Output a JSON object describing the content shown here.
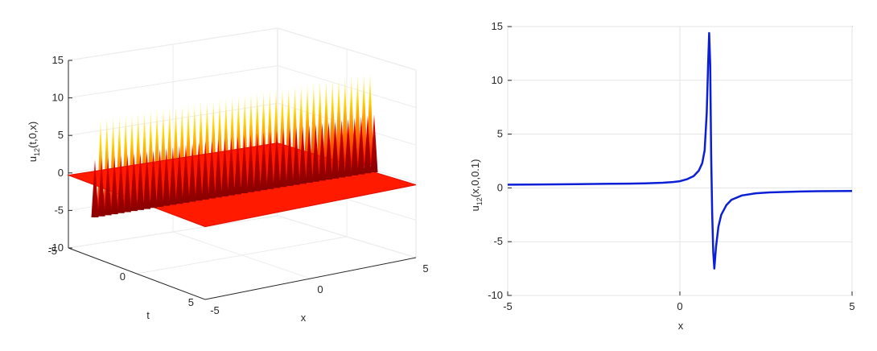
{
  "chart_data": [
    {
      "type": "surface",
      "xlabel": "x",
      "ylabel": "t",
      "zlabel_base": "u",
      "zlabel_sub": "12",
      "zlabel_rest": "(t,0,x)",
      "xlim": [
        -5,
        5
      ],
      "ylim": [
        -5,
        5
      ],
      "zlim": [
        -10,
        15
      ],
      "x_ticks": [
        "-5",
        "0",
        "5"
      ],
      "y_ticks": [
        "-5",
        "0",
        "5"
      ],
      "z_ticks": [
        "-10",
        "-5",
        "0",
        "5",
        "10",
        "15"
      ],
      "spike_count": 44,
      "spike_max": 12,
      "spike_min": -8,
      "baseline": -0.3,
      "colormap": [
        "#8b0000",
        "#ff0000",
        "#ff6a00",
        "#ffd200",
        "#ffffa8"
      ],
      "grid": true
    },
    {
      "type": "line",
      "xlabel": "x",
      "ylabel_base": "u",
      "ylabel_sub": "12",
      "ylabel_rest": "(x,0,0.1)",
      "xlim": [
        -5,
        5
      ],
      "ylim": [
        -10,
        15
      ],
      "x_ticks": [
        "-5",
        "0",
        "5"
      ],
      "y_ticks": [
        "-10",
        "-5",
        "0",
        "5",
        "10",
        "15"
      ],
      "line_color": "#0a1fd6",
      "grid": true,
      "series": [
        {
          "x": [
            -5,
            -4,
            -3,
            -2,
            -1.5,
            -1,
            -0.5,
            -0.2,
            0,
            0.2,
            0.4,
            0.55,
            0.65,
            0.72,
            0.78,
            0.82,
            0.85,
            0.88,
            0.91,
            0.94,
            0.97,
            1.0,
            1.05,
            1.12,
            1.2,
            1.35,
            1.5,
            1.8,
            2.2,
            2.6,
            3,
            3.5,
            4,
            4.5,
            5
          ],
          "y": [
            0.3,
            0.32,
            0.35,
            0.38,
            0.4,
            0.43,
            0.48,
            0.55,
            0.62,
            0.8,
            1.1,
            1.6,
            2.3,
            3.5,
            7,
            11.5,
            14.4,
            11.5,
            3,
            -2.5,
            -6,
            -7.5,
            -5.5,
            -3.6,
            -2.5,
            -1.6,
            -1.1,
            -0.7,
            -0.5,
            -0.42,
            -0.38,
            -0.34,
            -0.31,
            -0.3,
            -0.29
          ]
        }
      ]
    }
  ]
}
